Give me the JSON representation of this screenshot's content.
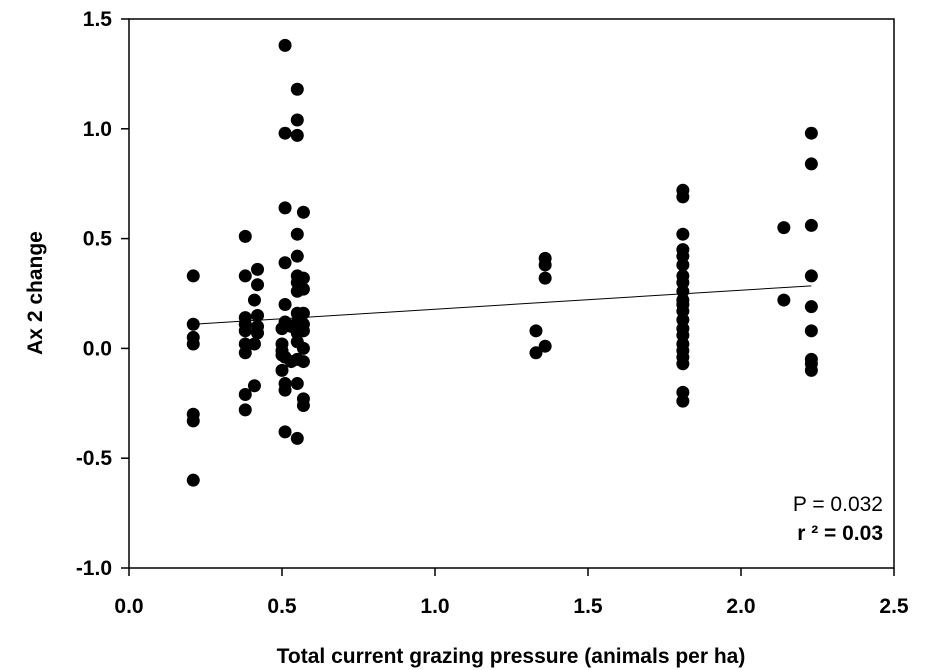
{
  "chart_data": {
    "type": "scatter",
    "title": "",
    "xlabel": "Total current grazing pressure (animals per ha)",
    "ylabel": "Ax 2 change",
    "xlim": [
      0.0,
      2.5
    ],
    "ylim": [
      -1.0,
      1.5
    ],
    "x_ticks": [
      "0.0",
      "0.5",
      "1.0",
      "1.5",
      "2.0",
      "2.5"
    ],
    "y_ticks": [
      "-1.0",
      "-0.5",
      "0.0",
      "0.5",
      "1.0",
      "1.5"
    ],
    "grid": false,
    "legend": "none",
    "marker_color": "#000000",
    "series": [
      {
        "points": [
          [
            0.21,
            0.33
          ],
          [
            0.21,
            0.11
          ],
          [
            0.21,
            0.05
          ],
          [
            0.21,
            0.02
          ],
          [
            0.21,
            -0.3
          ],
          [
            0.21,
            -0.33
          ],
          [
            0.21,
            -0.6
          ],
          [
            0.38,
            0.51
          ],
          [
            0.38,
            0.33
          ],
          [
            0.38,
            0.14
          ],
          [
            0.38,
            0.11
          ],
          [
            0.38,
            0.08
          ],
          [
            0.38,
            0.02
          ],
          [
            0.38,
            -0.02
          ],
          [
            0.38,
            -0.21
          ],
          [
            0.38,
            -0.28
          ],
          [
            0.42,
            0.36
          ],
          [
            0.42,
            0.29
          ],
          [
            0.41,
            0.22
          ],
          [
            0.42,
            0.15
          ],
          [
            0.42,
            0.1
          ],
          [
            0.42,
            0.07
          ],
          [
            0.41,
            0.02
          ],
          [
            0.41,
            -0.17
          ],
          [
            0.5,
            0.09
          ],
          [
            0.5,
            0.02
          ],
          [
            0.5,
            -0.01
          ],
          [
            0.5,
            -0.03
          ],
          [
            0.5,
            -0.1
          ],
          [
            0.51,
            1.38
          ],
          [
            0.51,
            0.98
          ],
          [
            0.51,
            0.64
          ],
          [
            0.51,
            0.39
          ],
          [
            0.51,
            0.2
          ],
          [
            0.51,
            0.12
          ],
          [
            0.51,
            -0.04
          ],
          [
            0.51,
            -0.16
          ],
          [
            0.51,
            -0.19
          ],
          [
            0.51,
            -0.38
          ],
          [
            0.53,
            0.1
          ],
          [
            0.53,
            -0.06
          ],
          [
            0.55,
            1.18
          ],
          [
            0.55,
            1.04
          ],
          [
            0.55,
            0.97
          ],
          [
            0.55,
            0.52
          ],
          [
            0.55,
            0.42
          ],
          [
            0.55,
            0.33
          ],
          [
            0.55,
            0.3
          ],
          [
            0.55,
            0.26
          ],
          [
            0.55,
            0.16
          ],
          [
            0.55,
            0.12
          ],
          [
            0.55,
            0.08
          ],
          [
            0.55,
            0.07
          ],
          [
            0.55,
            0.03
          ],
          [
            0.55,
            -0.05
          ],
          [
            0.55,
            -0.16
          ],
          [
            0.55,
            -0.41
          ],
          [
            0.57,
            0.62
          ],
          [
            0.57,
            0.32
          ],
          [
            0.57,
            0.27
          ],
          [
            0.57,
            0.16
          ],
          [
            0.57,
            0.11
          ],
          [
            0.57,
            0.08
          ],
          [
            0.57,
            0.0
          ],
          [
            0.57,
            -0.06
          ],
          [
            0.57,
            -0.23
          ],
          [
            0.57,
            -0.26
          ],
          [
            1.33,
            0.08
          ],
          [
            1.33,
            -0.02
          ],
          [
            1.36,
            0.41
          ],
          [
            1.36,
            0.38
          ],
          [
            1.36,
            0.32
          ],
          [
            1.36,
            0.01
          ],
          [
            1.81,
            0.72
          ],
          [
            1.81,
            0.69
          ],
          [
            1.81,
            0.52
          ],
          [
            1.81,
            0.45
          ],
          [
            1.81,
            0.42
          ],
          [
            1.81,
            0.38
          ],
          [
            1.81,
            0.33
          ],
          [
            1.81,
            0.3
          ],
          [
            1.81,
            0.26
          ],
          [
            1.81,
            0.22
          ],
          [
            1.81,
            0.2
          ],
          [
            1.81,
            0.17
          ],
          [
            1.81,
            0.13
          ],
          [
            1.81,
            0.09
          ],
          [
            1.81,
            0.06
          ],
          [
            1.81,
            0.02
          ],
          [
            1.81,
            -0.01
          ],
          [
            1.81,
            -0.04
          ],
          [
            1.81,
            -0.07
          ],
          [
            1.81,
            -0.2
          ],
          [
            1.81,
            -0.24
          ],
          [
            2.14,
            0.55
          ],
          [
            2.14,
            0.22
          ],
          [
            2.23,
            0.98
          ],
          [
            2.23,
            0.84
          ],
          [
            2.23,
            0.56
          ],
          [
            2.23,
            0.33
          ],
          [
            2.23,
            0.19
          ],
          [
            2.23,
            0.08
          ],
          [
            2.23,
            -0.05
          ],
          [
            2.23,
            -0.07
          ],
          [
            2.23,
            -0.1
          ]
        ]
      }
    ],
    "regression_line": {
      "x": [
        0.21,
        2.23
      ],
      "y": [
        0.11,
        0.285
      ]
    },
    "annotations": {
      "p_text": "P = 0.032",
      "r2_text": "r ² = 0.03"
    }
  }
}
